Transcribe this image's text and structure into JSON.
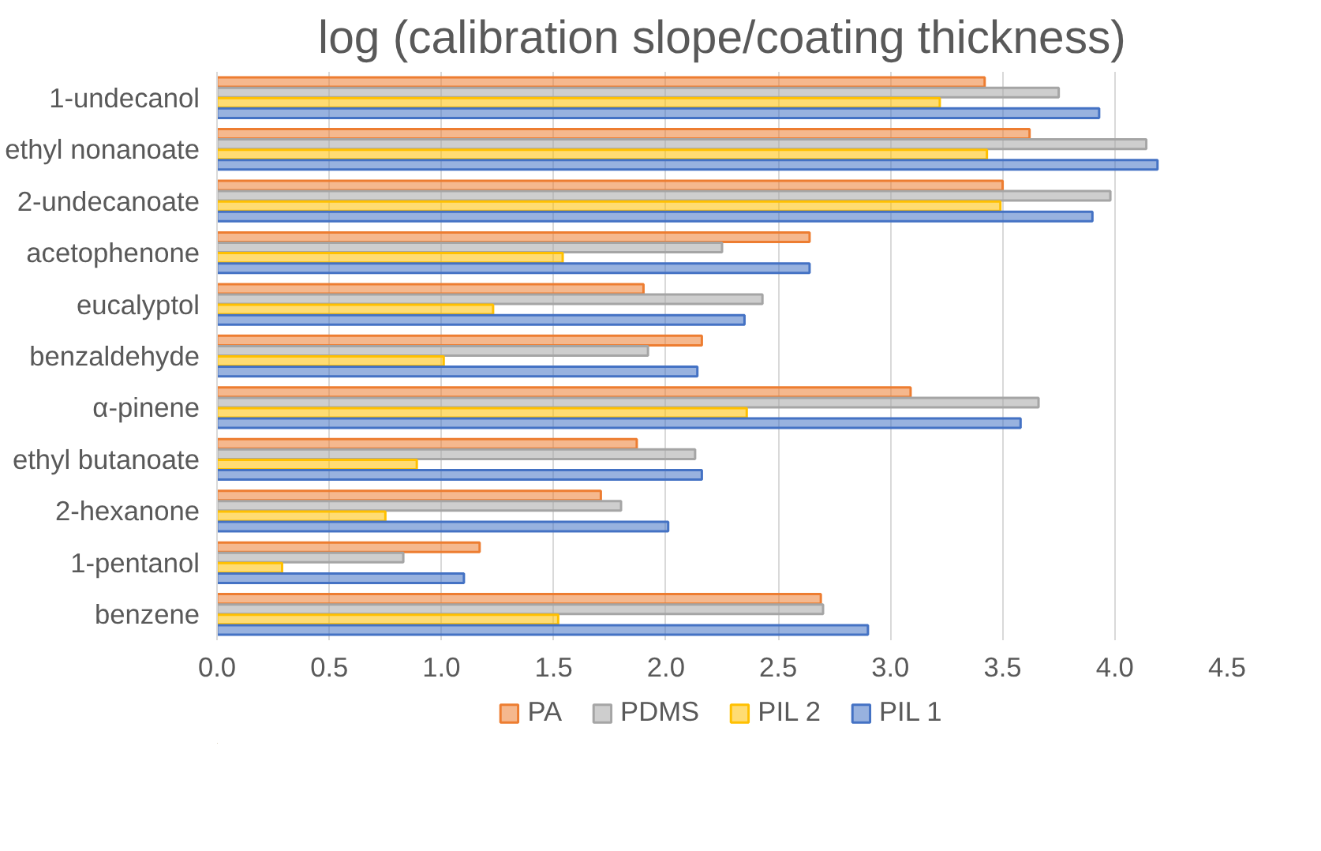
{
  "chart_data": {
    "type": "bar",
    "orientation": "horizontal",
    "title": "log (calibration slope/coating thickness)",
    "categories": [
      "1-undecanol",
      "ethyl nonanoate",
      "2-undecanoate",
      "acetophenone",
      "eucalyptol",
      "benzaldehyde",
      "α-pinene",
      "ethyl butanoate",
      "2-hexanone",
      "1-pentanol",
      "benzene"
    ],
    "series": [
      {
        "name": "PA",
        "color": "#ed7d31",
        "values": [
          3.42,
          3.62,
          3.5,
          2.64,
          1.9,
          2.16,
          3.09,
          1.87,
          1.71,
          1.17,
          2.69
        ]
      },
      {
        "name": "PDMS",
        "color": "#a5a5a5",
        "values": [
          3.75,
          4.14,
          3.98,
          2.25,
          2.43,
          1.92,
          3.66,
          2.13,
          1.8,
          0.83,
          2.7
        ]
      },
      {
        "name": "PIL 2",
        "color": "#ffc000",
        "values": [
          3.22,
          3.43,
          3.49,
          1.54,
          1.23,
          1.01,
          2.36,
          0.89,
          0.75,
          0.29,
          1.52
        ]
      },
      {
        "name": "PIL 1",
        "color": "#4472c4",
        "values": [
          3.93,
          4.19,
          3.9,
          2.64,
          2.35,
          2.14,
          3.58,
          2.16,
          2.01,
          1.1,
          2.9
        ]
      }
    ],
    "xlim": [
      0,
      4.5
    ],
    "xticks": [
      {
        "value": 0,
        "label": "0.0"
      },
      {
        "value": 0.5,
        "label": "0.5"
      },
      {
        "value": 1,
        "label": "1.0"
      },
      {
        "value": 1.5,
        "label": "1.5"
      },
      {
        "value": 2,
        "label": "2.0"
      },
      {
        "value": 2.5,
        "label": "2.5"
      },
      {
        "value": 3,
        "label": "3.0"
      },
      {
        "value": 3.5,
        "label": "3.5"
      },
      {
        "value": 4,
        "label": "4.0"
      },
      {
        "value": 4.5,
        "label": "4.5"
      }
    ],
    "grid": "x",
    "legend": "bottom"
  }
}
